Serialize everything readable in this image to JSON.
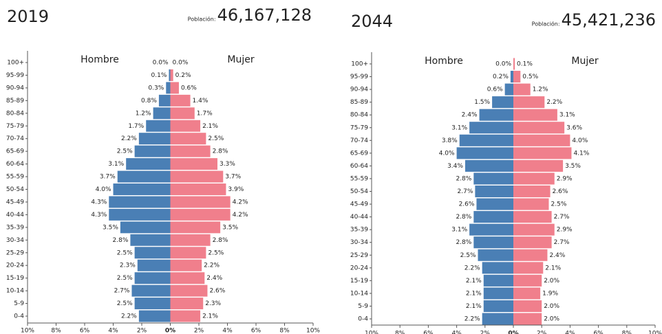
{
  "chart_data": [
    {
      "type": "bar",
      "title": "2019",
      "population_label": "Población:",
      "population": "46,167,128",
      "categories": [
        "100+",
        "95-99",
        "90-94",
        "85-89",
        "80-84",
        "75-79",
        "70-74",
        "65-69",
        "60-64",
        "55-59",
        "50-54",
        "45-49",
        "40-44",
        "35-39",
        "30-34",
        "25-29",
        "20-24",
        "15-19",
        "10-14",
        "5-9",
        "0-4"
      ],
      "series": [
        {
          "name": "Hombre",
          "color": "#4a7fb5",
          "side": "left",
          "values": [
            0.0,
            0.1,
            0.3,
            0.8,
            1.2,
            1.7,
            2.2,
            2.5,
            3.1,
            3.7,
            4.0,
            4.3,
            4.3,
            3.5,
            2.8,
            2.5,
            2.3,
            2.5,
            2.7,
            2.5,
            2.2
          ],
          "value_labels": [
            "0.0%",
            "0.1%",
            "0.3%",
            "0.8%",
            "1.2%",
            "1.7%",
            "2.2%",
            "2.5%",
            "3.1%",
            "3.7%",
            "4.0%",
            "4.3%",
            "4.3%",
            "3.5%",
            "2.8%",
            "2.5%",
            "2.3%",
            "2.5%",
            "2.7%",
            "2.5%",
            "2.2%"
          ]
        },
        {
          "name": "Mujer",
          "color": "#f07f8c",
          "side": "right",
          "values": [
            0.0,
            0.2,
            0.6,
            1.4,
            1.7,
            2.1,
            2.5,
            2.8,
            3.3,
            3.7,
            3.9,
            4.2,
            4.2,
            3.5,
            2.8,
            2.5,
            2.2,
            2.4,
            2.6,
            2.3,
            2.1
          ],
          "value_labels": [
            "0.0%",
            "0.2%",
            "0.6%",
            "1.4%",
            "1.7%",
            "2.1%",
            "2.5%",
            "2.8%",
            "3.3%",
            "3.7%",
            "3.9%",
            "4.2%",
            "4.2%",
            "3.5%",
            "2.8%",
            "2.5%",
            "2.2%",
            "2.4%",
            "2.6%",
            "2.3%",
            "2.1%"
          ]
        }
      ],
      "xlim": [
        -10,
        10
      ],
      "xticks": [
        {
          "value": -10,
          "label": "10%"
        },
        {
          "value": -8,
          "label": "8%"
        },
        {
          "value": -6,
          "label": "6%"
        },
        {
          "value": -4,
          "label": "4%"
        },
        {
          "value": -2,
          "label": "2%"
        },
        {
          "value": 0,
          "label": "0%"
        },
        {
          "value": 2,
          "label": "2%"
        },
        {
          "value": 4,
          "label": "4%"
        },
        {
          "value": 6,
          "label": "6%"
        },
        {
          "value": 8,
          "label": "8%"
        },
        {
          "value": 10,
          "label": "10%"
        }
      ]
    },
    {
      "type": "bar",
      "title": "2044",
      "population_label": "Población:",
      "population": "45,421,236",
      "categories": [
        "100+",
        "95-99",
        "90-94",
        "85-89",
        "80-84",
        "75-79",
        "70-74",
        "65-69",
        "60-64",
        "55-59",
        "50-54",
        "45-49",
        "40-44",
        "35-39",
        "30-34",
        "25-29",
        "20-24",
        "15-19",
        "10-14",
        "5-9",
        "0-4"
      ],
      "series": [
        {
          "name": "Hombre",
          "color": "#4a7fb5",
          "side": "left",
          "values": [
            0.0,
            0.2,
            0.6,
            1.5,
            2.4,
            3.1,
            3.8,
            4.0,
            3.4,
            2.8,
            2.7,
            2.6,
            2.8,
            3.1,
            2.8,
            2.5,
            2.2,
            2.1,
            2.1,
            2.1,
            2.2
          ],
          "value_labels": [
            "0.0%",
            "0.2%",
            "0.6%",
            "1.5%",
            "2.4%",
            "3.1%",
            "3.8%",
            "4.0%",
            "3.4%",
            "2.8%",
            "2.7%",
            "2.6%",
            "2.8%",
            "3.1%",
            "2.8%",
            "2.5%",
            "2.2%",
            "2.1%",
            "2.1%",
            "2.1%",
            "2.2%"
          ]
        },
        {
          "name": "Mujer",
          "color": "#f07f8c",
          "side": "right",
          "values": [
            0.1,
            0.5,
            1.2,
            2.2,
            3.1,
            3.6,
            4.0,
            4.1,
            3.5,
            2.9,
            2.6,
            2.5,
            2.7,
            2.9,
            2.7,
            2.4,
            2.1,
            2.0,
            1.9,
            2.0,
            2.0
          ],
          "value_labels": [
            "0.1%",
            "0.5%",
            "1.2%",
            "2.2%",
            "3.1%",
            "3.6%",
            "4.0%",
            "4.1%",
            "3.5%",
            "2.9%",
            "2.6%",
            "2.5%",
            "2.7%",
            "2.9%",
            "2.7%",
            "2.4%",
            "2.1%",
            "2.0%",
            "1.9%",
            "2.0%",
            "2.0%"
          ]
        }
      ],
      "xlim": [
        -10,
        10
      ],
      "xticks": [
        {
          "value": -10,
          "label": "10%"
        },
        {
          "value": -8,
          "label": "8%"
        },
        {
          "value": -6,
          "label": "6%"
        },
        {
          "value": -4,
          "label": "4%"
        },
        {
          "value": -2,
          "label": "2%"
        },
        {
          "value": 0,
          "label": "0%"
        },
        {
          "value": 2,
          "label": "2%"
        },
        {
          "value": 4,
          "label": "4%"
        },
        {
          "value": 6,
          "label": "6%"
        },
        {
          "value": 8,
          "label": "8%"
        },
        {
          "value": 10,
          "label": "10%"
        }
      ]
    }
  ]
}
